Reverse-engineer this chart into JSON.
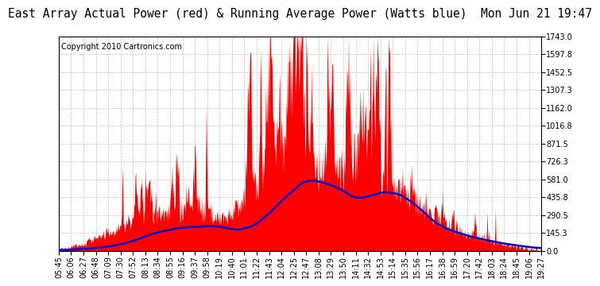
{
  "title": "East Array Actual Power (red) & Running Average Power (Watts blue)  Mon Jun 21 19:47",
  "copyright": "Copyright 2010 Cartronics.com",
  "background_color": "#ffffff",
  "plot_bg_color": "#ffffff",
  "grid_color": "#bbbbbb",
  "yticks": [
    0.0,
    145.3,
    290.5,
    435.8,
    581.0,
    726.3,
    871.5,
    1016.8,
    1162.0,
    1307.3,
    1452.5,
    1597.8,
    1743.0
  ],
  "ymax": 1743.0,
  "x_labels": [
    "05:45",
    "06:06",
    "06:27",
    "06:48",
    "07:09",
    "07:30",
    "07:52",
    "08:13",
    "08:34",
    "08:55",
    "09:16",
    "09:37",
    "09:58",
    "10:19",
    "10:40",
    "11:01",
    "11:22",
    "11:43",
    "12:04",
    "12:25",
    "12:47",
    "13:08",
    "13:29",
    "13:50",
    "14:11",
    "14:32",
    "14:53",
    "15:14",
    "15:35",
    "15:56",
    "16:17",
    "16:38",
    "16:59",
    "17:20",
    "17:42",
    "18:03",
    "18:24",
    "18:45",
    "19:06",
    "19:27"
  ],
  "actual_color": "#ff0000",
  "average_color": "#0000cc",
  "title_fontsize": 10.5,
  "copyright_fontsize": 7,
  "tick_fontsize": 7
}
